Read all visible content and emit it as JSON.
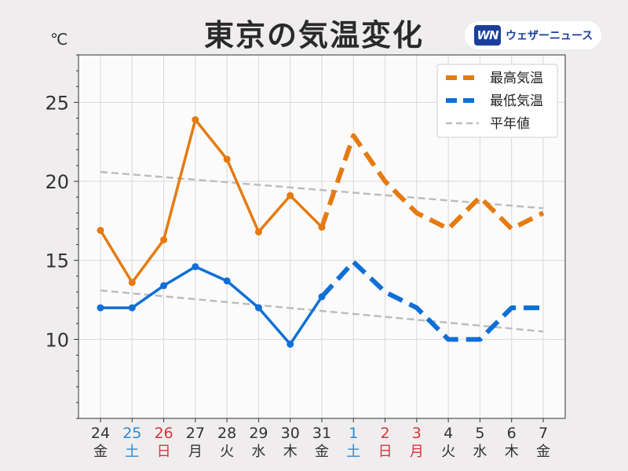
{
  "title": "東京の気温変化",
  "unit": "℃",
  "logo": {
    "mark": "WN",
    "text": "ウェザーニュース"
  },
  "colors": {
    "high": "#e57b10",
    "low": "#0f6fd6",
    "normal": "#bdbdbd",
    "weekday": "#333333",
    "saturday": "#2a8ad8",
    "sunday": "#d7353c"
  },
  "chart_data": {
    "type": "line",
    "title": "東京の気温変化",
    "ylabel": "℃",
    "ylim": [
      5,
      28
    ],
    "yticks": [
      10,
      15,
      20,
      25
    ],
    "grid": true,
    "legend_position": "top-right",
    "x": [
      {
        "day": "24",
        "weekday": "金",
        "kind": "weekday"
      },
      {
        "day": "25",
        "weekday": "土",
        "kind": "saturday"
      },
      {
        "day": "26",
        "weekday": "日",
        "kind": "sunday"
      },
      {
        "day": "27",
        "weekday": "月",
        "kind": "weekday"
      },
      {
        "day": "28",
        "weekday": "火",
        "kind": "weekday"
      },
      {
        "day": "29",
        "weekday": "水",
        "kind": "weekday"
      },
      {
        "day": "30",
        "weekday": "木",
        "kind": "weekday"
      },
      {
        "day": "31",
        "weekday": "金",
        "kind": "weekday"
      },
      {
        "day": "1",
        "weekday": "土",
        "kind": "saturday"
      },
      {
        "day": "2",
        "weekday": "日",
        "kind": "sunday"
      },
      {
        "day": "3",
        "weekday": "月",
        "kind": "sunday"
      },
      {
        "day": "4",
        "weekday": "火",
        "kind": "weekday"
      },
      {
        "day": "5",
        "weekday": "水",
        "kind": "weekday"
      },
      {
        "day": "6",
        "weekday": "木",
        "kind": "weekday"
      },
      {
        "day": "7",
        "weekday": "金",
        "kind": "weekday"
      }
    ],
    "series": [
      {
        "name": "最高気温",
        "key": "high",
        "observed": [
          16.9,
          13.6,
          16.3,
          23.9,
          21.4,
          16.8,
          19.1,
          17.1
        ],
        "forecast": [
          17.1,
          22.9,
          20.0,
          18.0,
          17.0,
          19.0,
          17.0,
          18.0
        ],
        "forecast_start_index": 7
      },
      {
        "name": "最低気温",
        "key": "low",
        "observed": [
          12.0,
          12.0,
          13.4,
          14.6,
          13.7,
          12.0,
          9.7,
          12.7
        ],
        "forecast": [
          12.7,
          14.9,
          13.0,
          12.0,
          10.0,
          10.0,
          12.0,
          12.0
        ],
        "forecast_start_index": 7
      },
      {
        "name": "平年値",
        "key": "normal_high",
        "start": 20.6,
        "end": 18.3
      },
      {
        "name": "",
        "key": "normal_low",
        "start": 13.1,
        "end": 10.5
      }
    ]
  }
}
